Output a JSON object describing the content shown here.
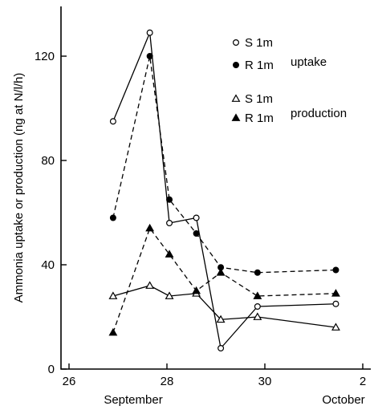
{
  "chart_data": {
    "type": "line",
    "ylabel": "Ammonia uptake or production (ng at N/l/h)",
    "xlabel": "",
    "xlim": [
      26,
      32
    ],
    "ylim": [
      0,
      140
    ],
    "x_ticks": [
      "26",
      "28",
      "30",
      "2"
    ],
    "y_ticks": [
      "0",
      "40",
      "80",
      "120"
    ],
    "month_labels": [
      "September",
      "October"
    ],
    "legend_group_labels": [
      "uptake",
      "production"
    ],
    "series": [
      {
        "name": "S 1m",
        "group": "uptake",
        "marker": "open-circle",
        "line": "solid",
        "x": [
          26.9,
          27.65,
          28.05,
          28.6,
          29.1,
          29.85,
          31.45
        ],
        "y": [
          95,
          129,
          56,
          58,
          8,
          24,
          25
        ]
      },
      {
        "name": "R 1m",
        "group": "uptake",
        "marker": "filled-circle",
        "line": "dashed",
        "x": [
          26.9,
          27.65,
          28.05,
          28.6,
          29.1,
          29.85,
          31.45
        ],
        "y": [
          58,
          120,
          65,
          52,
          39,
          37,
          38
        ]
      },
      {
        "name": "S 1m",
        "group": "production",
        "marker": "open-triangle",
        "line": "solid",
        "x": [
          26.9,
          27.65,
          28.05,
          28.6,
          29.1,
          29.85,
          31.45
        ],
        "y": [
          28,
          32,
          28,
          29,
          19,
          20,
          16
        ]
      },
      {
        "name": "R 1m",
        "group": "production",
        "marker": "filled-triangle",
        "line": "dashed",
        "x": [
          26.9,
          27.65,
          28.05,
          28.6,
          29.1,
          29.85,
          31.45
        ],
        "y": [
          14,
          54,
          44,
          30,
          37,
          28,
          29
        ]
      }
    ],
    "grid": false,
    "legend_position": "top-right"
  }
}
